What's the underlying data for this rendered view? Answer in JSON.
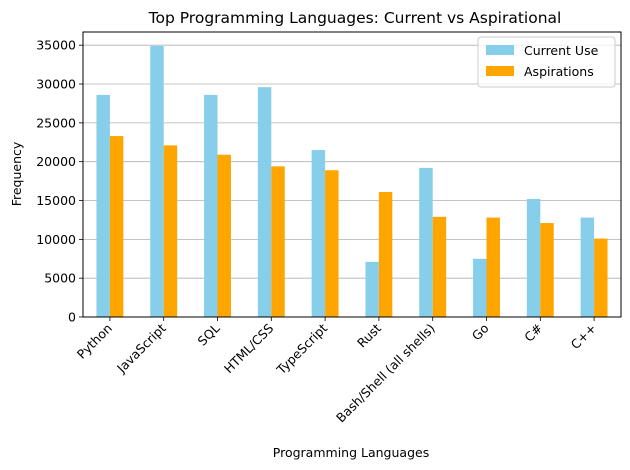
{
  "chart_data": {
    "type": "bar",
    "title": "Top Programming Languages: Current vs Aspirational",
    "xlabel": "Programming Languages",
    "ylabel": "Frequency",
    "categories": [
      "Python",
      "JavaScript",
      "SQL",
      "HTML/CSS",
      "TypeScript",
      "Rust",
      "Bash/Shell (all shells)",
      "Go",
      "C#",
      "C++"
    ],
    "series": [
      {
        "name": "Current Use",
        "color": "#87ceeb",
        "values": [
          28600,
          34900,
          28600,
          29600,
          21500,
          7100,
          19200,
          7500,
          15200,
          12800
        ]
      },
      {
        "name": "Aspirations",
        "color": "#ffa500",
        "values": [
          23300,
          22100,
          20900,
          19400,
          18900,
          16100,
          12900,
          12800,
          12100,
          10100
        ]
      }
    ],
    "ylim": [
      0,
      36700
    ],
    "yticks": [
      0,
      5000,
      10000,
      15000,
      20000,
      25000,
      30000,
      35000
    ],
    "grid": "y",
    "legend": "top-right"
  }
}
